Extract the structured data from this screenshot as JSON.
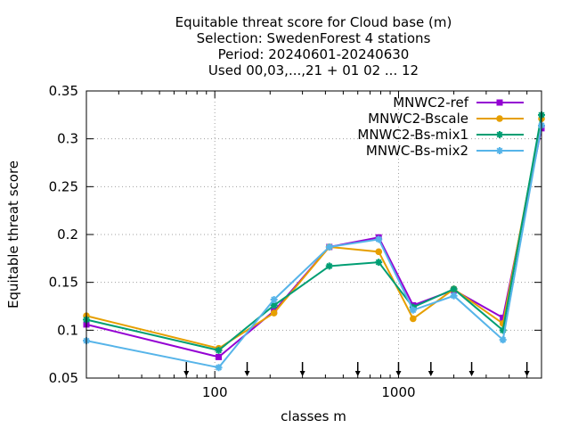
{
  "chart_data": {
    "type": "line",
    "title_lines": [
      "Equitable threat score  for Cloud base (m)",
      "Selection: SwedenForest      4 stations",
      "Period: 20240601-20240630",
      "Used 00,03,...,21 + 01 02 ... 12"
    ],
    "xlabel": "classes m",
    "ylabel": "Equitable threat score",
    "xscale": "log",
    "xlim": [
      20,
      6000
    ],
    "ylim": [
      0.05,
      0.35
    ],
    "xticks": [
      100,
      1000
    ],
    "xtick_labels": [
      "100",
      "1000"
    ],
    "yticks": [
      0.05,
      0.1,
      0.15,
      0.2,
      0.25,
      0.3,
      0.35
    ],
    "ytick_labels": [
      "0.05",
      "0.1",
      "0.15",
      "0.2",
      "0.25",
      "0.3",
      "0.35"
    ],
    "grid": true,
    "legend_position": "top-right",
    "class_markers": [
      70,
      150,
      300,
      600,
      1000,
      1500,
      2500,
      5000
    ],
    "x": [
      20,
      105,
      210,
      420,
      780,
      1200,
      2000,
      3700,
      6000
    ],
    "series": [
      {
        "name": "MNWC2-ref",
        "color": "#9400d3",
        "marker": "square",
        "values": [
          0.106,
          0.072,
          0.12,
          0.187,
          0.197,
          0.126,
          0.142,
          0.113,
          0.311
        ]
      },
      {
        "name": "MNWC2-Bscale",
        "color": "#e69f00",
        "marker": "circle",
        "values": [
          0.115,
          0.081,
          0.118,
          0.187,
          0.182,
          0.112,
          0.143,
          0.107,
          0.321
        ]
      },
      {
        "name": "MNWC2-Bs-mix1",
        "color": "#009e73",
        "marker": "star",
        "values": [
          0.111,
          0.079,
          0.126,
          0.167,
          0.171,
          0.124,
          0.143,
          0.1,
          0.325
        ]
      },
      {
        "name": "MNWC-Bs-mix2",
        "color": "#56b4e9",
        "marker": "star",
        "values": [
          0.089,
          0.061,
          0.132,
          0.187,
          0.195,
          0.121,
          0.136,
          0.09,
          0.314
        ]
      }
    ]
  }
}
